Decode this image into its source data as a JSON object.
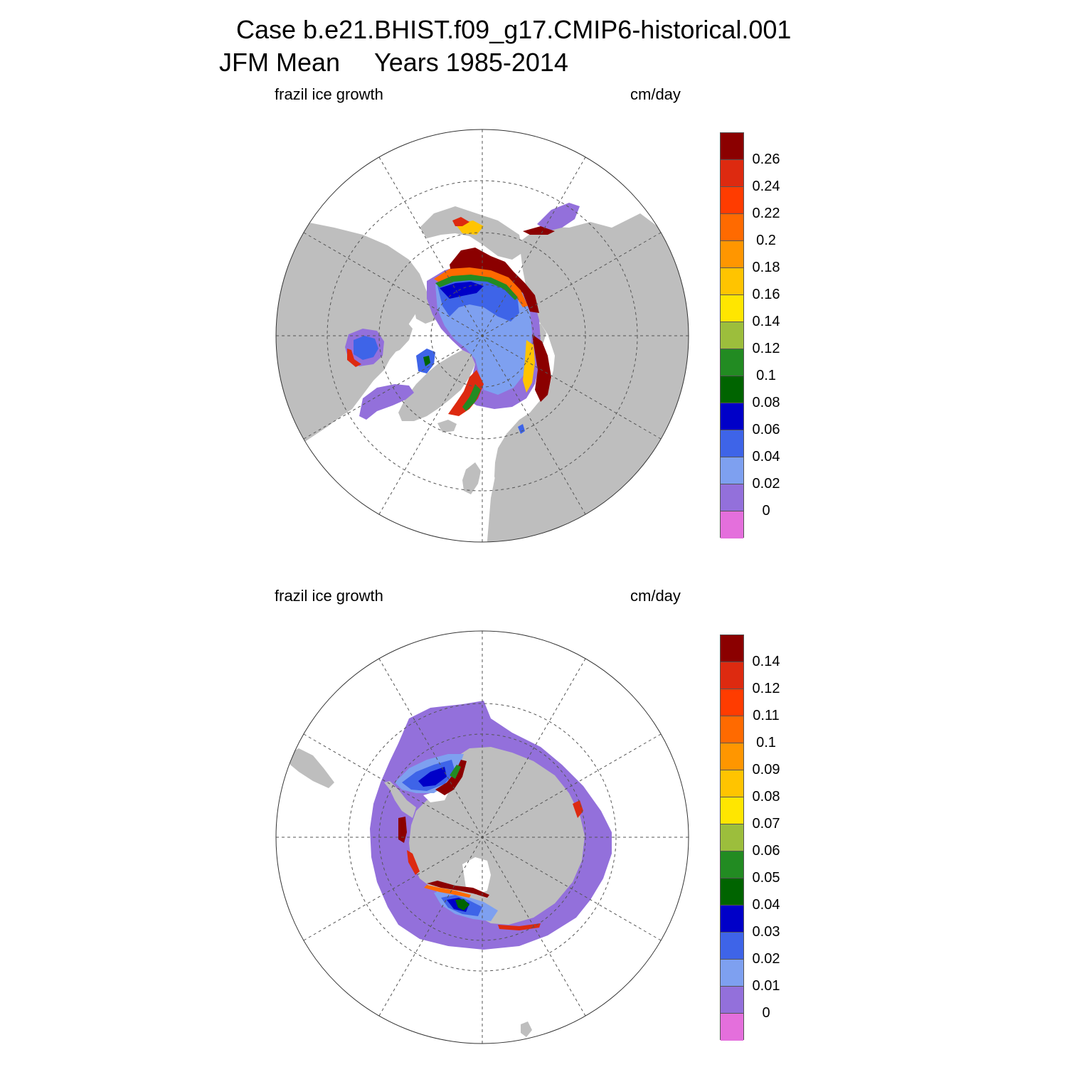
{
  "title": {
    "case_line": "Case b.e21.BHIST.f09_g17.CMIP6-historical.001",
    "period_label": "JFM Mean",
    "years_label": "Years 1985-2014"
  },
  "panels": [
    {
      "hemisphere": "north",
      "variable_label": "frazil ice growth",
      "units_label": "cm/day",
      "colorbar": {
        "colors": [
          "#8b0000",
          "#dd2a10",
          "#ff3c00",
          "#ff6a00",
          "#ff9600",
          "#ffc400",
          "#ffe600",
          "#9cbe3c",
          "#228b22",
          "#006400",
          "#0000c8",
          "#3e64e8",
          "#7ea0f0",
          "#9370db",
          "#e46fdc"
        ],
        "labels": [
          "0.26",
          "0.24",
          "0.22",
          "0.2",
          "0.18",
          "0.16",
          "0.14",
          "0.12",
          "0.1",
          "0.08",
          "0.06",
          "0.04",
          "0.02",
          "0"
        ]
      }
    },
    {
      "hemisphere": "south",
      "variable_label": "frazil ice growth",
      "units_label": "cm/day",
      "colorbar": {
        "colors": [
          "#8b0000",
          "#dd2a10",
          "#ff3c00",
          "#ff6a00",
          "#ff9600",
          "#ffc400",
          "#ffe600",
          "#9cbe3c",
          "#228b22",
          "#006400",
          "#0000c8",
          "#3e64e8",
          "#7ea0f0",
          "#9370db",
          "#e46fdc"
        ],
        "labels": [
          "0.14",
          "0.12",
          "0.11",
          "0.1",
          "0.09",
          "0.08",
          "0.07",
          "0.06",
          "0.05",
          "0.04",
          "0.03",
          "0.02",
          "0.01",
          "0"
        ]
      }
    }
  ],
  "style": {
    "land_color": "#bebebe",
    "ocean_color": "#ffffff",
    "grid_color": "#555555"
  }
}
